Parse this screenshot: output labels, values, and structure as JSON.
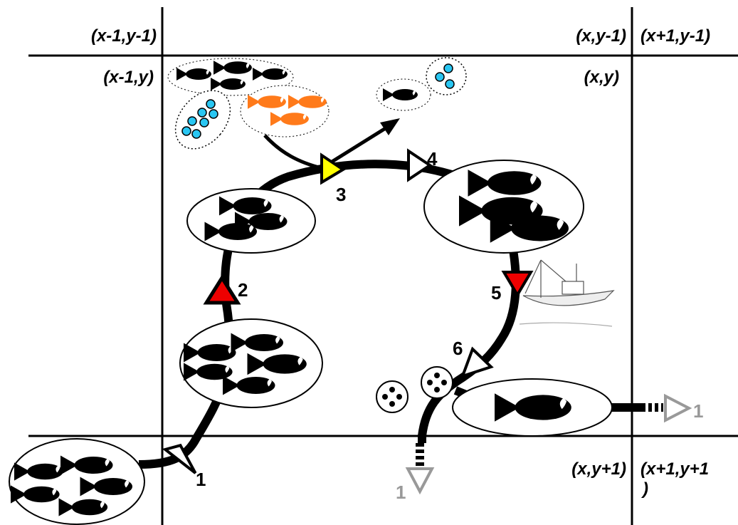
{
  "cell_labels": {
    "top_left": "(x-1,y-1)",
    "top_mid": "(x,y-1)",
    "top_right": "(x+1,y-1)",
    "mid_left": "(x-1,y)",
    "mid_mid": "(x,y)",
    "bottom_mid": "(x,y+1)",
    "bottom_right": [
      "(x+1,y+1",
      ")"
    ]
  },
  "steps": [
    "1",
    "2",
    "3",
    "4",
    "5",
    "6"
  ],
  "exit_labels": {
    "right": "1",
    "down": "1"
  }
}
